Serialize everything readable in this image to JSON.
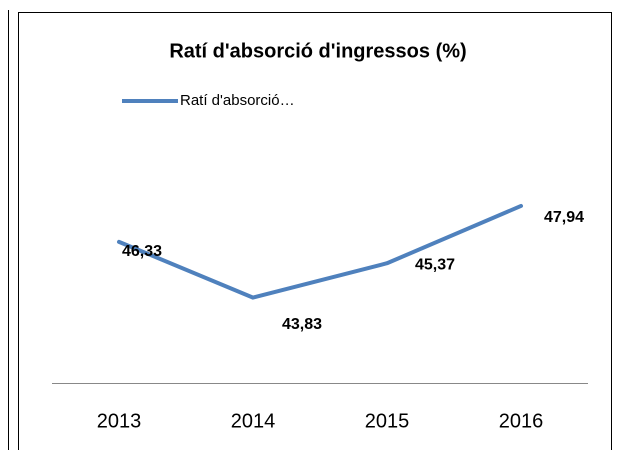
{
  "chart_data": {
    "type": "line",
    "title": "Ratí d'absorció d'ingressos (%)",
    "categories": [
      "2013",
      "2014",
      "2015",
      "2016"
    ],
    "series": [
      {
        "name": "Ratí d'absorció…",
        "color": "#4f81bd",
        "values": [
          46.33,
          43.83,
          45.37,
          47.94
        ],
        "value_labels": [
          "46,33",
          "43,83",
          "45,37",
          "47,94"
        ]
      }
    ],
    "ylim": [
      40,
      50
    ],
    "legend": "top-left"
  }
}
